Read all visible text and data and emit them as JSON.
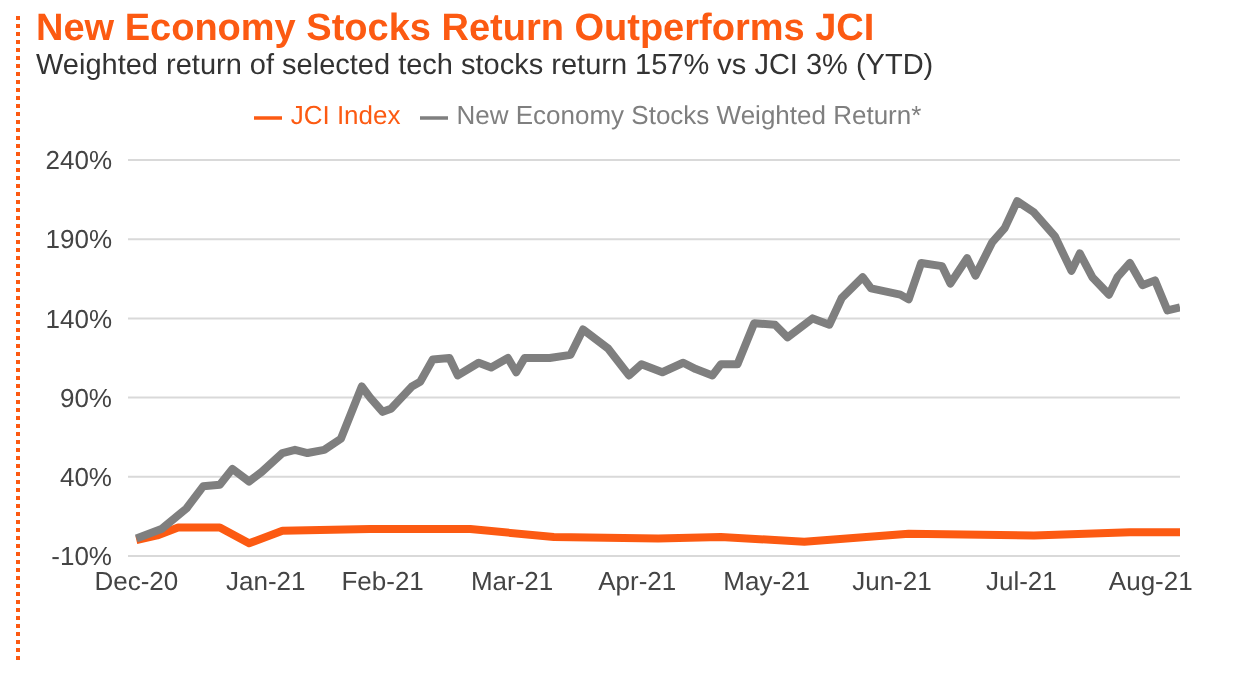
{
  "chart_data": {
    "type": "line",
    "title": "New Economy Stocks Return Outperforms JCI",
    "subtitle": "Weighted return of selected tech stocks return 157% vs JCI 3% (YTD)",
    "series": [
      {
        "name": "JCI Index",
        "color": "#fc5a12",
        "x": [
          "2020-12-31",
          "2021-01-05",
          "2021-01-10",
          "2021-01-20",
          "2021-01-27",
          "2021-02-04",
          "2021-02-25",
          "2021-03-21",
          "2021-04-10",
          "2021-05-05",
          "2021-05-20",
          "2021-06-09",
          "2021-07-04",
          "2021-08-03",
          "2021-08-26",
          "2021-09-07"
        ],
        "values": [
          0,
          3,
          8,
          8,
          -2,
          6,
          7,
          7,
          2,
          1,
          2,
          -1,
          4,
          3,
          5,
          5
        ]
      },
      {
        "name": "New Economy Stocks Weighted Return*",
        "color": "#7f7f7f",
        "x": [
          "2020-12-31",
          "2021-01-06",
          "2021-01-12",
          "2021-01-16",
          "2021-01-20",
          "2021-01-23",
          "2021-01-27",
          "2021-01-30",
          "2021-02-04",
          "2021-02-07",
          "2021-02-10",
          "2021-02-14",
          "2021-02-18",
          "2021-02-23",
          "2021-02-25",
          "2021-02-28",
          "2021-03-02",
          "2021-03-07",
          "2021-03-09",
          "2021-03-12",
          "2021-03-16",
          "2021-03-18",
          "2021-03-23",
          "2021-03-26",
          "2021-03-30",
          "2021-04-01",
          "2021-04-03",
          "2021-04-09",
          "2021-04-14",
          "2021-04-17",
          "2021-04-23",
          "2021-04-28",
          "2021-05-01",
          "2021-05-06",
          "2021-05-11",
          "2021-05-14",
          "2021-05-18",
          "2021-05-20",
          "2021-05-24",
          "2021-05-28",
          "2021-06-02",
          "2021-06-05",
          "2021-06-11",
          "2021-06-15",
          "2021-06-18",
          "2021-06-23",
          "2021-06-25",
          "2021-07-02",
          "2021-07-04",
          "2021-07-07",
          "2021-07-12",
          "2021-07-14",
          "2021-07-18",
          "2021-07-20",
          "2021-07-24",
          "2021-07-27",
          "2021-07-30",
          "2021-08-03",
          "2021-08-08",
          "2021-08-12",
          "2021-08-14",
          "2021-08-17",
          "2021-08-21",
          "2021-08-23",
          "2021-08-26",
          "2021-08-29",
          "2021-09-01",
          "2021-09-04",
          "2021-09-07"
        ],
        "values": [
          1,
          7,
          20,
          34,
          35,
          45,
          37,
          43,
          55,
          57,
          55,
          57,
          64,
          97,
          90,
          81,
          83,
          97,
          100,
          114,
          115,
          104,
          112,
          109,
          115,
          106,
          115,
          115,
          117,
          133,
          121,
          104,
          111,
          106,
          112,
          108,
          104,
          111,
          111,
          137,
          136,
          128,
          140,
          136,
          153,
          166,
          159,
          155,
          152,
          175,
          173,
          162,
          178,
          167,
          188,
          197,
          214,
          207,
          192,
          170,
          181,
          166,
          155,
          166,
          175,
          161,
          164,
          145,
          147
        ]
      }
    ],
    "xlim": [
      "2020-12-29",
      "2021-09-07"
    ],
    "xticks": [
      {
        "value": "2020-12-31",
        "label": "Dec-20"
      },
      {
        "value": "2021-01-31",
        "label": "Jan-21"
      },
      {
        "value": "2021-02-28",
        "label": "Feb-21"
      },
      {
        "value": "2021-03-31",
        "label": "Mar-21"
      },
      {
        "value": "2021-04-30",
        "label": "Apr-21"
      },
      {
        "value": "2021-05-31",
        "label": "May-21"
      },
      {
        "value": "2021-06-30",
        "label": "Jun-21"
      },
      {
        "value": "2021-07-31",
        "label": "Jul-21"
      },
      {
        "value": "2021-08-31",
        "label": "Aug-21"
      }
    ],
    "ylim": [
      -10,
      240
    ],
    "yticks": [
      {
        "value": -10,
        "label": "-10%"
      },
      {
        "value": 40,
        "label": "40%"
      },
      {
        "value": 90,
        "label": "90%"
      },
      {
        "value": 140,
        "label": "140%"
      },
      {
        "value": 190,
        "label": "190%"
      },
      {
        "value": 240,
        "label": "240%"
      }
    ],
    "grid": "y",
    "legend": "top",
    "marker": "none",
    "line_style": "solid"
  }
}
